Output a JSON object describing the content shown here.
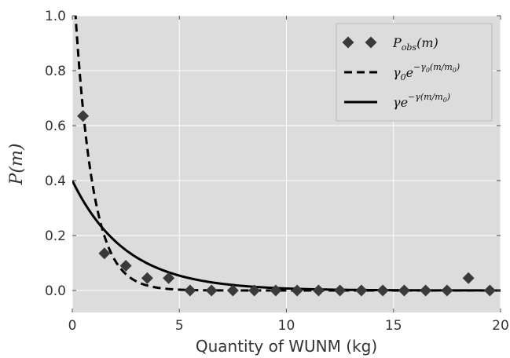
{
  "chart_data": {
    "type": "scatter",
    "xlabel": "Quantity of WUNM (kg)",
    "ylabel": "P(m)",
    "xlim": [
      0,
      20
    ],
    "ylim": [
      -0.08,
      1.0
    ],
    "x_ticks": [
      0,
      5,
      10,
      15,
      20
    ],
    "y_ticks": [
      0.0,
      0.2,
      0.4,
      0.6,
      0.8,
      1.0
    ],
    "x_tick_labels": [
      "0",
      "5",
      "10",
      "15",
      "20"
    ],
    "y_tick_labels": [
      "0.0",
      "0.2",
      "0.4",
      "0.6",
      "0.8",
      "1.0"
    ],
    "grid": true,
    "legend_position": "top-right",
    "background_color": "#dcdcdc",
    "series": [
      {
        "name": "P_obs(m)",
        "kind": "scatter",
        "marker": "diamond",
        "color": "#3a3a3a",
        "x": [
          0.5,
          1.5,
          2.5,
          3.5,
          4.5,
          5.5,
          6.5,
          7.5,
          8.5,
          9.5,
          10.5,
          11.5,
          12.5,
          13.5,
          14.5,
          15.5,
          16.5,
          17.5,
          18.5,
          19.5
        ],
        "y": [
          0.635,
          0.135,
          0.09,
          0.045,
          0.045,
          0.0,
          0.0,
          0.0,
          0.0,
          0.0,
          0.0,
          0.0,
          0.0,
          0.0,
          0.0,
          0.0,
          0.0,
          0.0,
          0.045,
          0.0
        ]
      },
      {
        "name": "γ0 e^{−γ0(m/m0)}",
        "kind": "line",
        "style": "dashed",
        "color": "#000000",
        "function": {
          "a": 1.2,
          "b": 1.2
        }
      },
      {
        "name": "γ e^{−γ(m/m0)}",
        "kind": "line",
        "style": "solid",
        "color": "#000000",
        "function": {
          "a": 0.4,
          "b": 0.4
        }
      }
    ],
    "legend": [
      {
        "base": "P",
        "sub": "obs",
        "rest": "(m)"
      },
      {
        "base": "γ",
        "sub": "0",
        "mid": "e",
        "sup": "−γ",
        "supsub": "0",
        "suprest": "(m/m",
        "supsub2": "0",
        "supend": ")"
      },
      {
        "base": "γ",
        "mid": "e",
        "sup": "−γ(m/m",
        "supsub2": "0",
        "supend": ")"
      }
    ]
  }
}
